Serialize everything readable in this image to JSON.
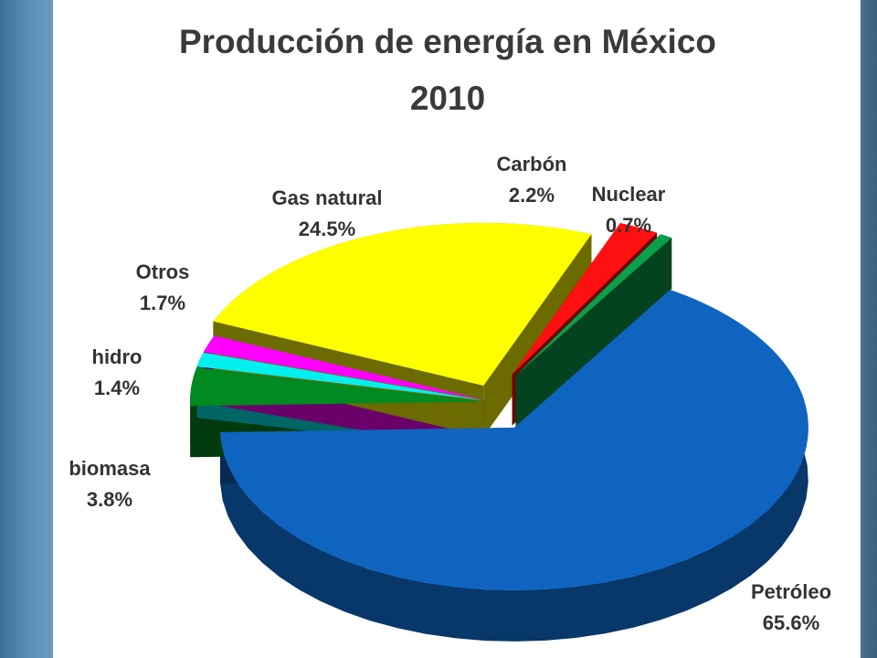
{
  "chart_data": {
    "type": "pie",
    "title_line1": "Producción de energía en México",
    "title_line2": "2010",
    "slices": [
      {
        "name": "Petróleo",
        "value": 65.6,
        "label": "65.6%",
        "color": "#0f64c0"
      },
      {
        "name": "biomasa",
        "value": 3.8,
        "label": "3.8%",
        "color": "#008a1f"
      },
      {
        "name": "hidro",
        "value": 1.4,
        "label": "1.4%",
        "color": "#00f0f0"
      },
      {
        "name": "Otros",
        "value": 1.7,
        "label": "1.7%",
        "color": "#ff00ff"
      },
      {
        "name": "Gas natural",
        "value": 24.5,
        "label": "24.5%",
        "color": "#ffff00"
      },
      {
        "name": "Carbón",
        "value": 2.2,
        "label": "2.2%",
        "color": "#ff1010"
      },
      {
        "name": "Nuclear",
        "value": 0.7,
        "label": "0.7%",
        "color": "#0aa04a"
      }
    ]
  }
}
